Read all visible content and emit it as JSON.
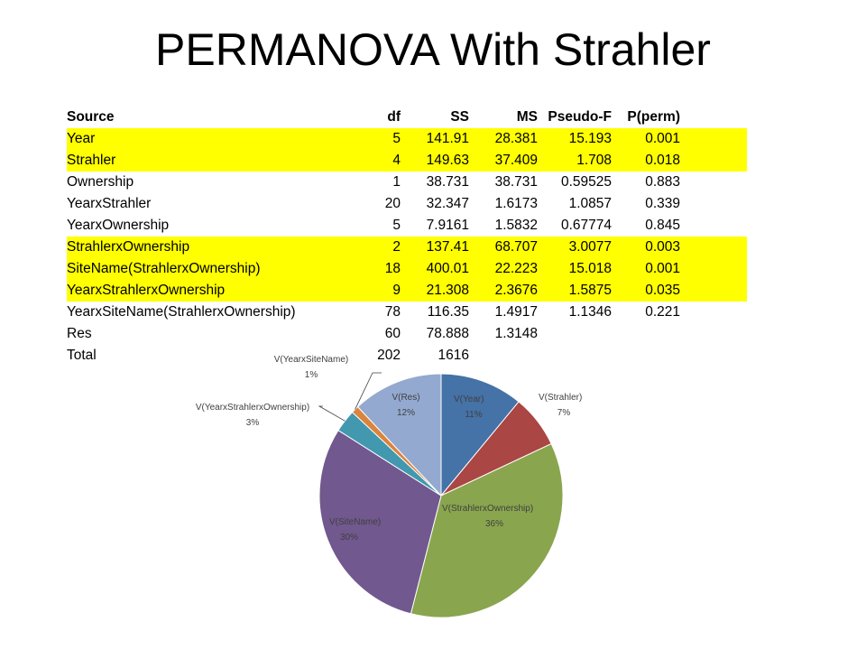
{
  "title": "PERMANOVA With Strahler",
  "table": {
    "headers": [
      "Source",
      "df",
      "SS",
      "MS",
      "Pseudo-F",
      "P(perm)"
    ],
    "rows": [
      {
        "cells": [
          "Year",
          "5",
          "141.91",
          "28.381",
          "15.193",
          "0.001"
        ],
        "highlight": true
      },
      {
        "cells": [
          "Strahler",
          "4",
          "149.63",
          "37.409",
          "1.708",
          "0.018"
        ],
        "highlight": true
      },
      {
        "cells": [
          "Ownership",
          "1",
          "38.731",
          "38.731",
          "0.59525",
          "0.883"
        ],
        "highlight": false
      },
      {
        "cells": [
          "YearxStrahler",
          "20",
          "32.347",
          "1.6173",
          "1.0857",
          "0.339"
        ],
        "highlight": false
      },
      {
        "cells": [
          "YearxOwnership",
          "5",
          "7.9161",
          "1.5832",
          "0.67774",
          "0.845"
        ],
        "highlight": false
      },
      {
        "cells": [
          "StrahlerxOwnership",
          "2",
          "137.41",
          "68.707",
          "3.0077",
          "0.003"
        ],
        "highlight": true
      },
      {
        "cells": [
          "SiteName(StrahlerxOwnership)",
          "18",
          "400.01",
          "22.223",
          "15.018",
          "0.001"
        ],
        "highlight": true
      },
      {
        "cells": [
          "YearxStrahlerxOwnership",
          "9",
          "21.308",
          "2.3676",
          "1.5875",
          "0.035"
        ],
        "highlight": true
      },
      {
        "cells": [
          "YearxSiteName(StrahlerxOwnership)",
          "78",
          "116.35",
          "1.4917",
          "1.1346",
          "0.221"
        ],
        "highlight": false
      },
      {
        "cells": [
          "Res",
          "60",
          "78.888",
          "1.3148",
          "",
          ""
        ],
        "highlight": false
      },
      {
        "cells": [
          "Total",
          "202",
          "1616",
          "",
          "",
          ""
        ],
        "highlight": false
      }
    ],
    "highlight_color": "#ffff00"
  },
  "chart_data": {
    "type": "pie",
    "title": "",
    "slices": [
      {
        "label": "V(Year)",
        "percent_label": "11%",
        "value": 11,
        "color": "#4572a7"
      },
      {
        "label": "V(Strahler)",
        "percent_label": "7%",
        "value": 7,
        "color": "#aa4643"
      },
      {
        "label": "V(StrahlerxOwnership)",
        "percent_label": "36%",
        "value": 36,
        "color": "#89a54e"
      },
      {
        "label": "V(SiteName)",
        "percent_label": "30%",
        "value": 30,
        "color": "#71588f"
      },
      {
        "label": "V(YearxStrahlerxOwnership)",
        "percent_label": "3%",
        "value": 3,
        "color": "#4198af"
      },
      {
        "label": "V(YearxSiteName)",
        "percent_label": "1%",
        "value": 1,
        "color": "#db843d"
      },
      {
        "label": "V(Res)",
        "percent_label": "12%",
        "value": 12,
        "color": "#93a9cf"
      }
    ],
    "start_angle": "12 o'clock",
    "direction": "clockwise",
    "legend": "none"
  }
}
